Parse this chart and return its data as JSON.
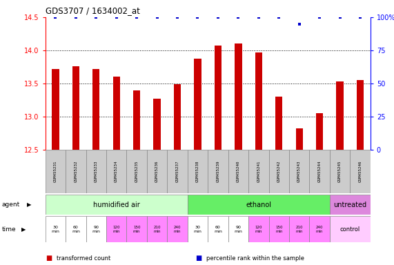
{
  "title": "GDS3707 / 1634002_at",
  "samples": [
    "GSM455231",
    "GSM455232",
    "GSM455233",
    "GSM455234",
    "GSM455235",
    "GSM455236",
    "GSM455237",
    "GSM455238",
    "GSM455239",
    "GSM455240",
    "GSM455241",
    "GSM455242",
    "GSM455243",
    "GSM455244",
    "GSM455245",
    "GSM455246"
  ],
  "bar_values": [
    13.72,
    13.76,
    13.72,
    13.6,
    13.4,
    13.27,
    13.49,
    13.87,
    14.07,
    14.1,
    13.97,
    13.3,
    12.82,
    13.05,
    13.53,
    13.55
  ],
  "percentile_values": [
    100,
    100,
    100,
    100,
    100,
    100,
    100,
    100,
    100,
    100,
    100,
    100,
    95,
    100,
    100,
    100
  ],
  "bar_color": "#cc0000",
  "dot_color": "#0000cc",
  "ylim": [
    12.5,
    14.5
  ],
  "yticks_left": [
    12.5,
    13.0,
    13.5,
    14.0,
    14.5
  ],
  "yticks_right": [
    0,
    25,
    50,
    75,
    100
  ],
  "agent_groups": [
    {
      "label": "humidified air",
      "start": 0,
      "end": 7,
      "color": "#ccffcc"
    },
    {
      "label": "ethanol",
      "start": 7,
      "end": 14,
      "color": "#66ee66"
    },
    {
      "label": "untreated",
      "start": 14,
      "end": 16,
      "color": "#dd88dd"
    }
  ],
  "time_labels": [
    "30\nmin",
    "60\nmin",
    "90\nmin",
    "120\nmin",
    "150\nmin",
    "210\nmin",
    "240\nmin",
    "30\nmin",
    "60\nmin",
    "90\nmin",
    "120\nmin",
    "150\nmin",
    "210\nmin",
    "240\nmin"
  ],
  "time_colors": [
    "#ff88ff",
    "#ff88ff",
    "#ff88ff",
    "#ff88ff",
    "#ff88ff",
    "#ff88ff",
    "#ff88ff",
    "#ff88ff",
    "#ff88ff",
    "#ff88ff",
    "#ff88ff",
    "#ff88ff",
    "#ff88ff",
    "#ff88ff"
  ],
  "time_white": [
    0,
    1,
    2,
    7,
    8,
    9
  ],
  "control_label": "control",
  "control_color": "#ffccff",
  "legend_items": [
    {
      "label": "transformed count",
      "color": "#cc0000"
    },
    {
      "label": "percentile rank within the sample",
      "color": "#0000cc"
    }
  ],
  "bar_width": 0.35,
  "sample_bg": "#cccccc"
}
